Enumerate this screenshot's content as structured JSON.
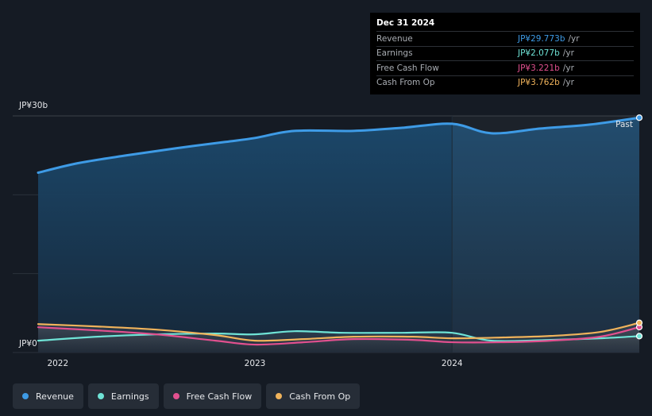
{
  "tooltip": {
    "date": "Dec 31 2024",
    "rows": [
      {
        "label": "Revenue",
        "value": "JP¥29.773b",
        "unit": "/yr",
        "color": "#3e9be6"
      },
      {
        "label": "Earnings",
        "value": "JP¥2.077b",
        "unit": "/yr",
        "color": "#6fe3d6"
      },
      {
        "label": "Free Cash Flow",
        "value": "JP¥3.221b",
        "unit": "/yr",
        "color": "#e2508f"
      },
      {
        "label": "Cash From Op",
        "value": "JP¥3.762b",
        "unit": "/yr",
        "color": "#f0b35b"
      }
    ]
  },
  "legend": [
    {
      "label": "Revenue",
      "color": "#3e9be6"
    },
    {
      "label": "Earnings",
      "color": "#6fe3d6"
    },
    {
      "label": "Free Cash Flow",
      "color": "#e2508f"
    },
    {
      "label": "Cash From Op",
      "color": "#f0b35b"
    }
  ],
  "chart_data": {
    "type": "area",
    "ylim": [
      0,
      30
    ],
    "y_ticks": [
      0,
      30
    ],
    "y_tick_labels": [
      "JP¥0",
      "JP¥30b"
    ],
    "x_range": [
      2021.9,
      2024.95
    ],
    "x_ticks": [
      2022,
      2023,
      2024
    ],
    "x_tick_labels": [
      "2022",
      "2023",
      "2024"
    ],
    "past_label": "Past",
    "grid": true,
    "series": [
      {
        "name": "Revenue",
        "color": "#3e9be6",
        "x": [
          2021.9,
          2022.1,
          2022.35,
          2022.6,
          2022.85,
          2023.0,
          2023.2,
          2023.5,
          2023.75,
          2024.0,
          2024.2,
          2024.45,
          2024.7,
          2024.95
        ],
        "y": [
          22.8,
          24.0,
          25.0,
          25.9,
          26.7,
          27.2,
          28.1,
          28.1,
          28.5,
          29.0,
          27.8,
          28.4,
          28.9,
          29.773
        ]
      },
      {
        "name": "Earnings",
        "color": "#6fe3d6",
        "x": [
          2021.9,
          2022.2,
          2022.5,
          2022.8,
          2023.0,
          2023.2,
          2023.45,
          2023.75,
          2024.0,
          2024.2,
          2024.5,
          2024.75,
          2024.95
        ],
        "y": [
          1.5,
          2.0,
          2.3,
          2.4,
          2.3,
          2.7,
          2.5,
          2.5,
          2.5,
          1.5,
          1.6,
          1.8,
          2.077
        ]
      },
      {
        "name": "Free Cash Flow",
        "color": "#e2508f",
        "x": [
          2021.9,
          2022.2,
          2022.5,
          2022.8,
          2023.0,
          2023.25,
          2023.5,
          2023.8,
          2024.0,
          2024.25,
          2024.5,
          2024.75,
          2024.95
        ],
        "y": [
          3.2,
          2.8,
          2.3,
          1.5,
          1.0,
          1.3,
          1.7,
          1.6,
          1.3,
          1.3,
          1.5,
          2.0,
          3.221
        ]
      },
      {
        "name": "Cash From Op",
        "color": "#f0b35b",
        "x": [
          2021.9,
          2022.2,
          2022.5,
          2022.8,
          2023.0,
          2023.25,
          2023.5,
          2023.8,
          2024.0,
          2024.25,
          2024.5,
          2024.75,
          2024.95
        ],
        "y": [
          3.6,
          3.3,
          2.9,
          2.2,
          1.5,
          1.7,
          2.0,
          2.0,
          1.8,
          1.9,
          2.1,
          2.6,
          3.762
        ]
      }
    ]
  }
}
